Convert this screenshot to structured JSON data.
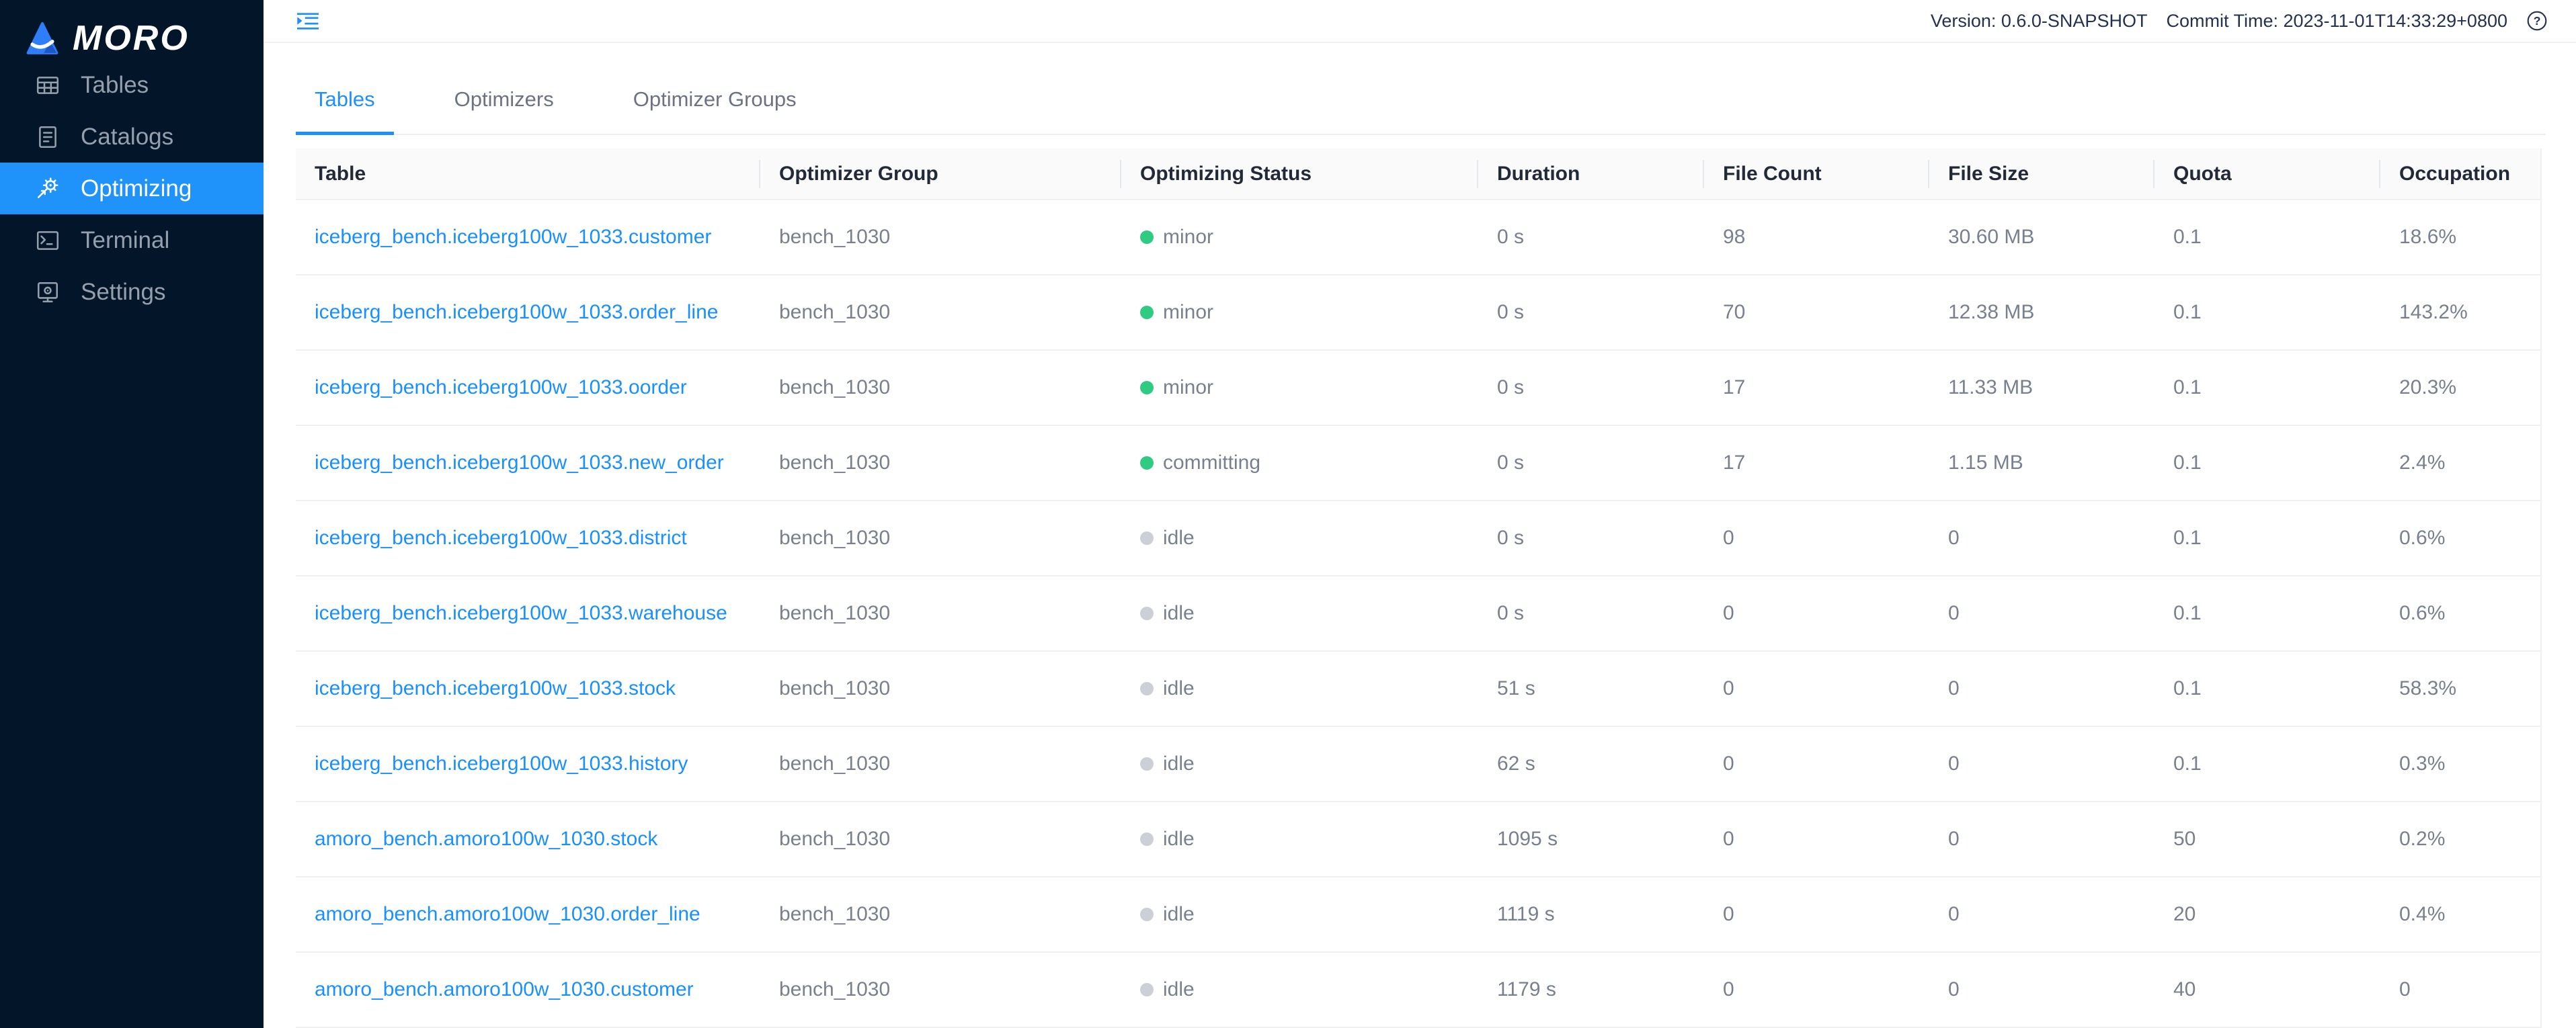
{
  "logo": {
    "mark": "A",
    "text": "MORO"
  },
  "sidebar": [
    {
      "label": "Tables",
      "icon": "tables-icon",
      "active": false
    },
    {
      "label": "Catalogs",
      "icon": "catalogs-icon",
      "active": false
    },
    {
      "label": "Optimizing",
      "icon": "optimizing-icon",
      "active": true
    },
    {
      "label": "Terminal",
      "icon": "terminal-icon",
      "active": false
    },
    {
      "label": "Settings",
      "icon": "settings-icon",
      "active": false
    }
  ],
  "topbar": {
    "version": "Version: 0.6.0-SNAPSHOT",
    "commit_time": "Commit Time: 2023-11-01T14:33:29+0800",
    "help_icon": "question-circle-icon",
    "collapse_icon": "menu-fold-icon"
  },
  "tabs": [
    {
      "label": "Tables",
      "active": true
    },
    {
      "label": "Optimizers",
      "active": false
    },
    {
      "label": "Optimizer Groups",
      "active": false
    }
  ],
  "table": {
    "columns": [
      "Table",
      "Optimizer Group",
      "Optimizing Status",
      "Duration",
      "File Count",
      "File Size",
      "Quota",
      "Occupation"
    ],
    "rows": [
      {
        "table": "iceberg_bench.iceberg100w_1033.customer",
        "optimizer_group": "bench_1030",
        "status": "minor",
        "status_color": "green",
        "duration": "0 s",
        "file_count": "98",
        "file_size": "30.60 MB",
        "quota": "0.1",
        "occupation": "18.6%"
      },
      {
        "table": "iceberg_bench.iceberg100w_1033.order_line",
        "optimizer_group": "bench_1030",
        "status": "minor",
        "status_color": "green",
        "duration": "0 s",
        "file_count": "70",
        "file_size": "12.38 MB",
        "quota": "0.1",
        "occupation": "143.2%"
      },
      {
        "table": "iceberg_bench.iceberg100w_1033.oorder",
        "optimizer_group": "bench_1030",
        "status": "minor",
        "status_color": "green",
        "duration": "0 s",
        "file_count": "17",
        "file_size": "11.33 MB",
        "quota": "0.1",
        "occupation": "20.3%"
      },
      {
        "table": "iceberg_bench.iceberg100w_1033.new_order",
        "optimizer_group": "bench_1030",
        "status": "committing",
        "status_color": "green",
        "duration": "0 s",
        "file_count": "17",
        "file_size": "1.15 MB",
        "quota": "0.1",
        "occupation": "2.4%"
      },
      {
        "table": "iceberg_bench.iceberg100w_1033.district",
        "optimizer_group": "bench_1030",
        "status": "idle",
        "status_color": "gray",
        "duration": "0 s",
        "file_count": "0",
        "file_size": "0",
        "quota": "0.1",
        "occupation": "0.6%"
      },
      {
        "table": "iceberg_bench.iceberg100w_1033.warehouse",
        "optimizer_group": "bench_1030",
        "status": "idle",
        "status_color": "gray",
        "duration": "0 s",
        "file_count": "0",
        "file_size": "0",
        "quota": "0.1",
        "occupation": "0.6%"
      },
      {
        "table": "iceberg_bench.iceberg100w_1033.stock",
        "optimizer_group": "bench_1030",
        "status": "idle",
        "status_color": "gray",
        "duration": "51 s",
        "file_count": "0",
        "file_size": "0",
        "quota": "0.1",
        "occupation": "58.3%"
      },
      {
        "table": "iceberg_bench.iceberg100w_1033.history",
        "optimizer_group": "bench_1030",
        "status": "idle",
        "status_color": "gray",
        "duration": "62 s",
        "file_count": "0",
        "file_size": "0",
        "quota": "0.1",
        "occupation": "0.3%"
      },
      {
        "table": "amoro_bench.amoro100w_1030.stock",
        "optimizer_group": "bench_1030",
        "status": "idle",
        "status_color": "gray",
        "duration": "1095 s",
        "file_count": "0",
        "file_size": "0",
        "quota": "50",
        "occupation": "0.2%"
      },
      {
        "table": "amoro_bench.amoro100w_1030.order_line",
        "optimizer_group": "bench_1030",
        "status": "idle",
        "status_color": "gray",
        "duration": "1119 s",
        "file_count": "0",
        "file_size": "0",
        "quota": "20",
        "occupation": "0.4%"
      },
      {
        "table": "amoro_bench.amoro100w_1030.customer",
        "optimizer_group": "bench_1030",
        "status": "idle",
        "status_color": "gray",
        "duration": "1179 s",
        "file_count": "0",
        "file_size": "0",
        "quota": "40",
        "occupation": "0"
      }
    ]
  },
  "colors": {
    "sidebar_bg": "#021529",
    "accent_blue": "#2093fb",
    "link_blue": "#1890ff",
    "status_green": "#30cb83",
    "status_gray": "#cbd0d8"
  }
}
